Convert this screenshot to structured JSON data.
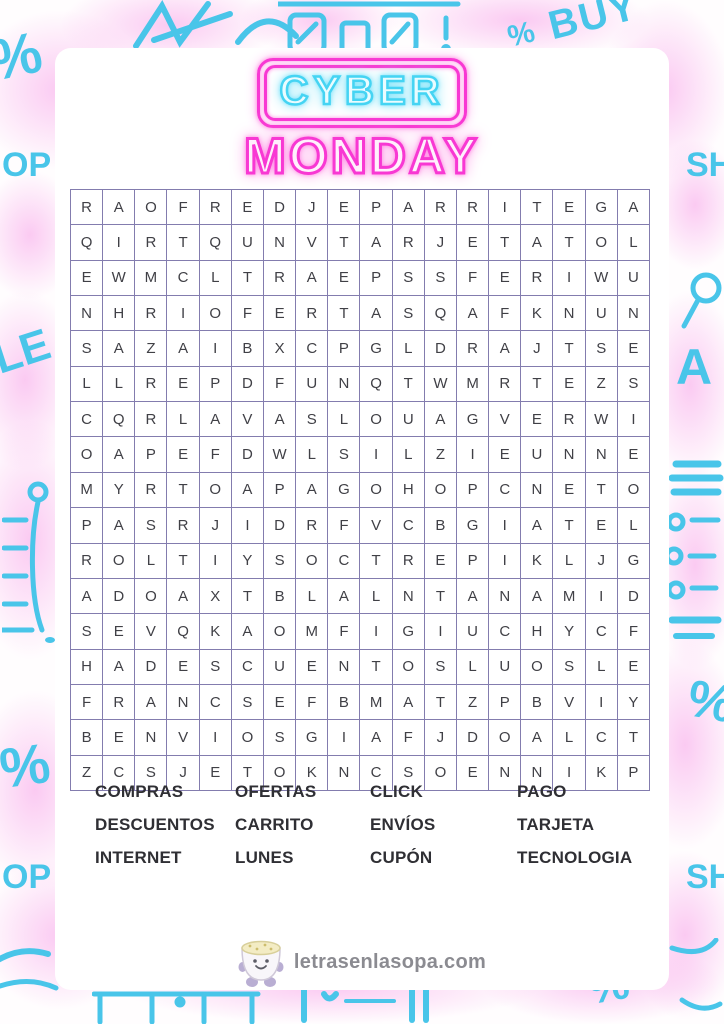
{
  "title": {
    "line1": "CYBER",
    "line2": "MONDAY",
    "neon_cyan": "#45d4f3",
    "neon_pink": "#f838d3"
  },
  "grid": {
    "columns": 18,
    "rows_count": 17,
    "border_color": "#837cae",
    "letter_color": "#404046",
    "rows": [
      "RAOFREDJEPARRITEGA",
      "QIRTQUNVTARJETATOL",
      "EWMCLTRAEPSSFERIWU",
      "NHRIOFERTASQAFKNUN",
      "SAZAIBXCPGLDRAJTSE",
      "LLREPDFUNQTWMRTEZS",
      "CQRLAVASLOUAGVERWI",
      "OAPEFDWLSILZIEUNNE",
      "MYRTOAPAGOHOPCNETO",
      "PASRJIDRFVCBGIATEL",
      "ROLTIYSOCTREPIKLJG",
      "ADOAXTBLALNTANAMID",
      "SEVQKAOMFIGIUCHYCF",
      "HADESCUENTOSLUOSLE",
      "FRANCSEFBMATZPBVIY",
      "BENVIOSGIAFJDOALCT",
      "ZCSJETOKNCSOENNIKP"
    ]
  },
  "word_list": {
    "columns": [
      [
        "COMPRAS",
        "DESCUENTOS",
        "INTERNET"
      ],
      [
        "OFERTAS",
        "CARRITO",
        "LUNES"
      ],
      [
        "CLICK",
        "ENVÍOS",
        "CUPÓN"
      ],
      [
        "PAGO",
        "TARJETA",
        "TECNOLOGIA"
      ]
    ]
  },
  "footer": {
    "site": "letrasenlasopa.com",
    "logo": "soup-bowl-mascot"
  },
  "background": {
    "doodle_color": "#49c5e9",
    "pink_glow_color": "#f7a0e8",
    "doodles": [
      {
        "pos": "d-pct-tl",
        "text": "%"
      },
      {
        "pos": "d-pct-t2",
        "text": "%"
      },
      {
        "pos": "d-buy-t",
        "text": "BUY"
      },
      {
        "pos": "d-op-l",
        "text": "OP"
      },
      {
        "pos": "d-le-l",
        "text": "LE"
      },
      {
        "pos": "d-pct-l2",
        "text": "%"
      },
      {
        "pos": "d-op-bl",
        "text": "OP"
      },
      {
        "pos": "d-sh-r",
        "text": "SH"
      },
      {
        "pos": "d-a-r",
        "text": "A"
      },
      {
        "pos": "d-pct-r",
        "text": "%"
      },
      {
        "pos": "d-sh-br",
        "text": "SH"
      },
      {
        "pos": "d-pct-b",
        "text": "%"
      }
    ]
  }
}
